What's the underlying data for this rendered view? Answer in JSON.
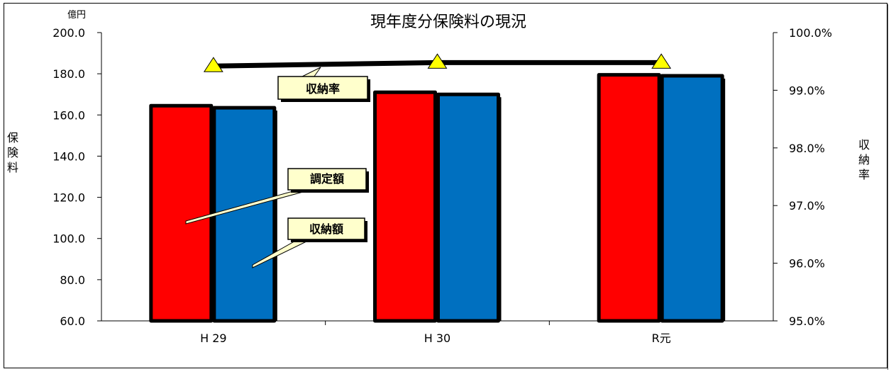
{
  "chart_data": {
    "type": "bar",
    "title": "現年度分保険料の現況",
    "categories": [
      "H 29",
      "H 30",
      "R元"
    ],
    "series": [
      {
        "name": "調定額",
        "type": "bar",
        "axis": "left",
        "color": "#ff0000",
        "values": [
          164.5,
          171.0,
          179.5
        ]
      },
      {
        "name": "収納額",
        "type": "bar",
        "axis": "left",
        "color": "#0070c0",
        "values": [
          163.5,
          170.0,
          179.0
        ]
      },
      {
        "name": "収納率",
        "type": "line",
        "axis": "right",
        "color": "#000000",
        "marker_color": "#ffff00",
        "values": [
          0.9942,
          0.9948,
          0.9948
        ]
      }
    ],
    "y_left": {
      "label": "保険料",
      "unit": "億円",
      "ylim": [
        60,
        200
      ],
      "ticks": [
        "60.0",
        "80.0",
        "100.0",
        "120.0",
        "140.0",
        "160.0",
        "180.0",
        "200.0"
      ]
    },
    "y_right": {
      "label": "収納率",
      "ylim": [
        0.95,
        1.0
      ],
      "ticks": [
        "95.0%",
        "96.0%",
        "97.0%",
        "98.0%",
        "99.0%",
        "100.0%"
      ]
    },
    "grid": false,
    "legend": "callouts"
  }
}
